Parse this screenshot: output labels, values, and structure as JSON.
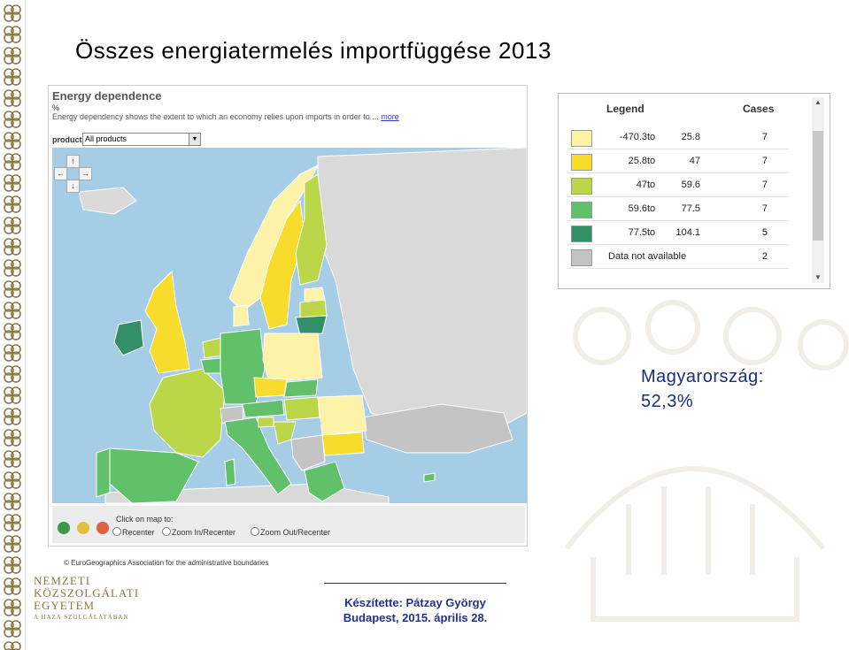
{
  "slide": {
    "title": "Összes energiatermelés importfüggése 2013",
    "highlight_country": "Magyarország:",
    "highlight_value": "52,3%",
    "credit_line1": "Készítette: Pátzay György",
    "credit_line2": "Budapest, 2015. április 28."
  },
  "logo": {
    "line1": "NEMZETI",
    "line2": "KÖZSZOLGÁLATI",
    "line3": "EGYETEM",
    "tagline": "A HAZA SZOLGÁLATÁBAN"
  },
  "map_panel": {
    "title": "Energy dependence",
    "unit": "%",
    "description": "Energy dependency shows the extent to which an economy relies upon imports in order to ...",
    "more_link": "more",
    "product_label": "product",
    "product_value": "All products",
    "click_label": "Click on map to:",
    "radio_options": [
      "Recenter",
      "Zoom In/Recenter",
      "Zoom Out/Recenter"
    ],
    "copyright": "© EuroGeographics Association for the administrative boundaries"
  },
  "legend": {
    "header_legend": "Legend",
    "header_cases": "Cases",
    "to_word": "to",
    "rows": [
      {
        "from": "-470.3",
        "to": "25.8",
        "cases": "7",
        "color": "#fdf2a8"
      },
      {
        "from": "25.8",
        "to": "47",
        "cases": "7",
        "color": "#f7dc2c"
      },
      {
        "from": "47",
        "to": "59.6",
        "cases": "7",
        "color": "#bcd64a"
      },
      {
        "from": "59.6",
        "to": "77.5",
        "cases": "7",
        "color": "#61c06a"
      },
      {
        "from": "77.5",
        "to": "104.1",
        "cases": "5",
        "color": "#339066"
      }
    ],
    "na_label": "Data not available",
    "na_cases": "2",
    "na_color": "#c4c4c4"
  },
  "colors": {
    "sea": "#a6cde6",
    "non_eu": "#d9d9d9",
    "title_blue": "#23318a",
    "logo_gold": "#8a7a42"
  }
}
